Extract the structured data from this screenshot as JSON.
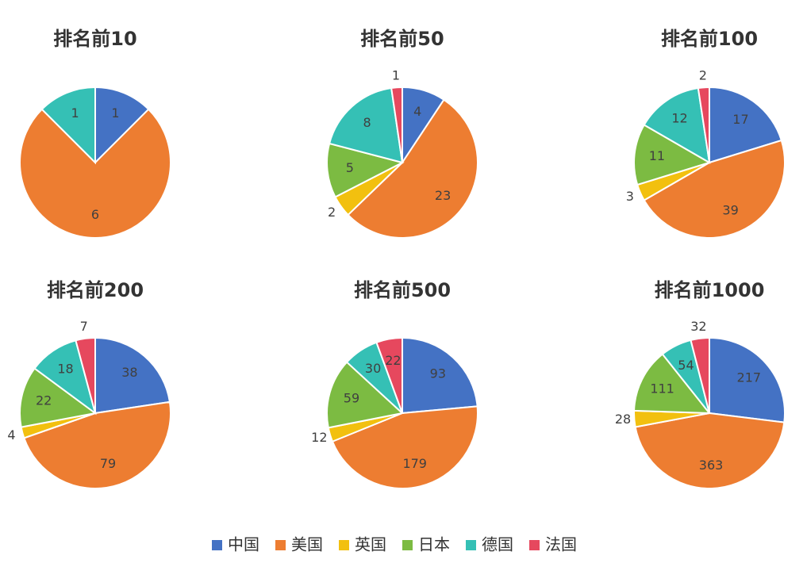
{
  "chart_data": [
    {
      "type": "pie",
      "title": "排名前10",
      "categories": [
        "中国",
        "美国",
        "英国",
        "日本",
        "德国",
        "法国"
      ],
      "colors": [
        "#4472c4",
        "#ed7d31",
        "#f2c00f",
        "#7cbb42",
        "#35c0b5",
        "#e6485e"
      ],
      "values": [
        1,
        6,
        0,
        0,
        1,
        0
      ]
    },
    {
      "type": "pie",
      "title": "排名前50",
      "categories": [
        "中国",
        "美国",
        "英国",
        "日本",
        "德国",
        "法国"
      ],
      "colors": [
        "#4472c4",
        "#ed7d31",
        "#f2c00f",
        "#7cbb42",
        "#35c0b5",
        "#e6485e"
      ],
      "values": [
        4,
        23,
        2,
        5,
        8,
        1
      ]
    },
    {
      "type": "pie",
      "title": "排名前100",
      "categories": [
        "中国",
        "美国",
        "英国",
        "日本",
        "德国",
        "法国"
      ],
      "colors": [
        "#4472c4",
        "#ed7d31",
        "#f2c00f",
        "#7cbb42",
        "#35c0b5",
        "#e6485e"
      ],
      "values": [
        17,
        39,
        3,
        11,
        12,
        2
      ]
    },
    {
      "type": "pie",
      "title": "排名前200",
      "categories": [
        "中国",
        "美国",
        "英国",
        "日本",
        "德国",
        "法国"
      ],
      "colors": [
        "#4472c4",
        "#ed7d31",
        "#f2c00f",
        "#7cbb42",
        "#35c0b5",
        "#e6485e"
      ],
      "values": [
        38,
        79,
        4,
        22,
        18,
        7
      ]
    },
    {
      "type": "pie",
      "title": "排名前500",
      "categories": [
        "中国",
        "美国",
        "英国",
        "日本",
        "德国",
        "法国"
      ],
      "colors": [
        "#4472c4",
        "#ed7d31",
        "#f2c00f",
        "#7cbb42",
        "#35c0b5",
        "#e6485e"
      ],
      "values": [
        93,
        179,
        12,
        59,
        30,
        22
      ]
    },
    {
      "type": "pie",
      "title": "排名前1000",
      "categories": [
        "中国",
        "美国",
        "英国",
        "日本",
        "德国",
        "法国"
      ],
      "colors": [
        "#4472c4",
        "#ed7d31",
        "#f2c00f",
        "#7cbb42",
        "#35c0b5",
        "#e6485e"
      ],
      "values": [
        217,
        363,
        28,
        111,
        54,
        32
      ]
    }
  ]
}
